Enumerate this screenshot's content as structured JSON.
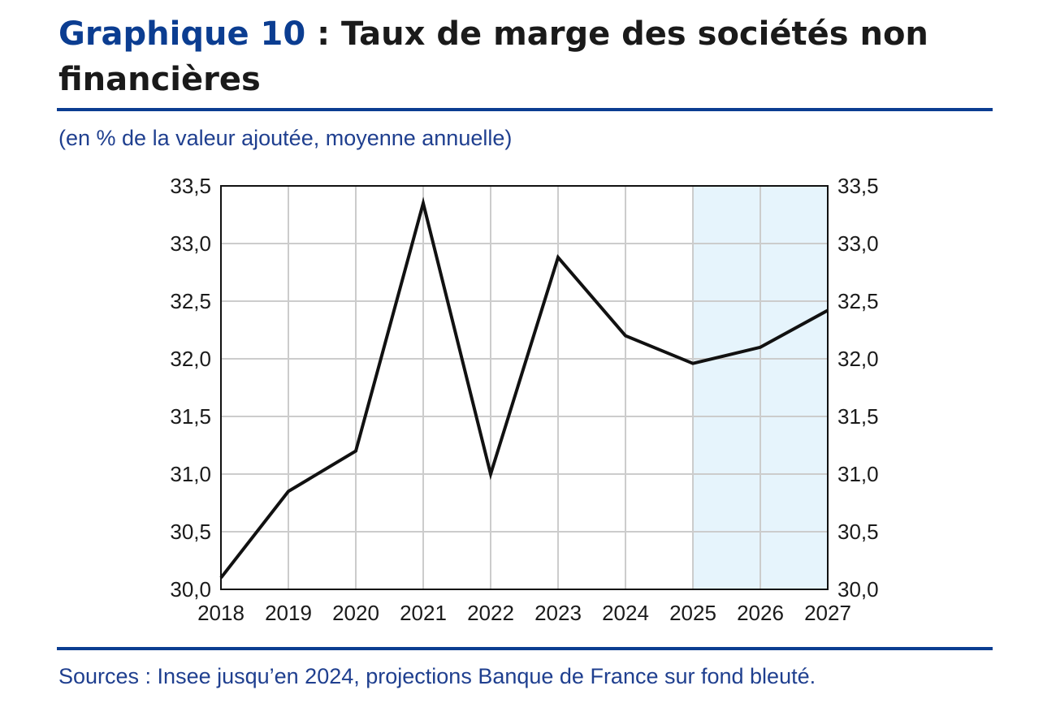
{
  "header": {
    "title_number": "Graphique 10",
    "title_rest": " : Taux de marge des sociétés non financières"
  },
  "subtitle": "(en % de la valeur ajoutée, moyenne annuelle)",
  "sources": "Sources : Insee jusqu’en 2024, projections Banque de France sur fond bleuté.",
  "colors": {
    "title_blue": "#0b3d91",
    "projection_shade": "#e6f4fc",
    "line": "#111111",
    "grid": "#cccccc"
  },
  "chart_data": {
    "type": "line",
    "title": "Graphique 10 : Taux de marge des sociétés non financières",
    "xlabel": "",
    "ylabel": "",
    "x": [
      "2018",
      "2019",
      "2020",
      "2021",
      "2022",
      "2023",
      "2024",
      "2025",
      "2026",
      "2027"
    ],
    "series": [
      {
        "values": [
          30.1,
          30.85,
          31.2,
          33.35,
          31.0,
          32.88,
          32.2,
          31.96,
          32.1,
          32.42
        ]
      }
    ],
    "ylim": [
      30.0,
      33.5
    ],
    "yticks": [
      "30,0",
      "30,5",
      "31,0",
      "31,5",
      "32,0",
      "32,5",
      "33,0",
      "33,5"
    ],
    "ytick_values": [
      30.0,
      30.5,
      31.0,
      31.5,
      32.0,
      32.5,
      33.0,
      33.5
    ],
    "dual_y_axis": true,
    "grid": true,
    "legend": "none",
    "shaded_range": {
      "from": "2025",
      "to": "2027",
      "meaning": "projection"
    }
  }
}
